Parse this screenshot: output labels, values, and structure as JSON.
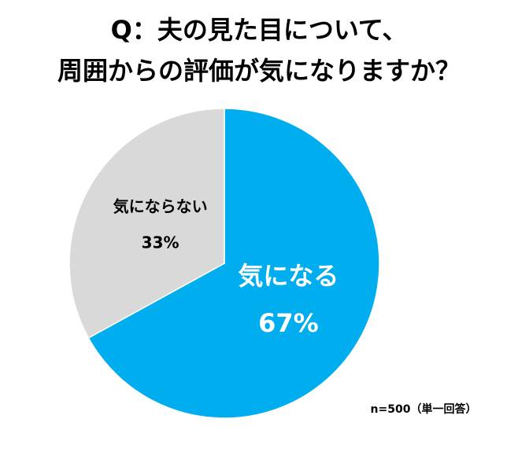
{
  "chart_data": {
    "type": "pie",
    "title": [
      "Q：夫の見た目について、",
      "周囲からの評価が気になりますか？"
    ],
    "categories": [
      "気になる",
      "気にならない"
    ],
    "values": [
      67,
      33
    ],
    "value_labels": [
      "67%",
      "33%"
    ],
    "colors": [
      "#00aeef",
      "#d9d9d9"
    ],
    "note": "n=500（単一回答）"
  }
}
